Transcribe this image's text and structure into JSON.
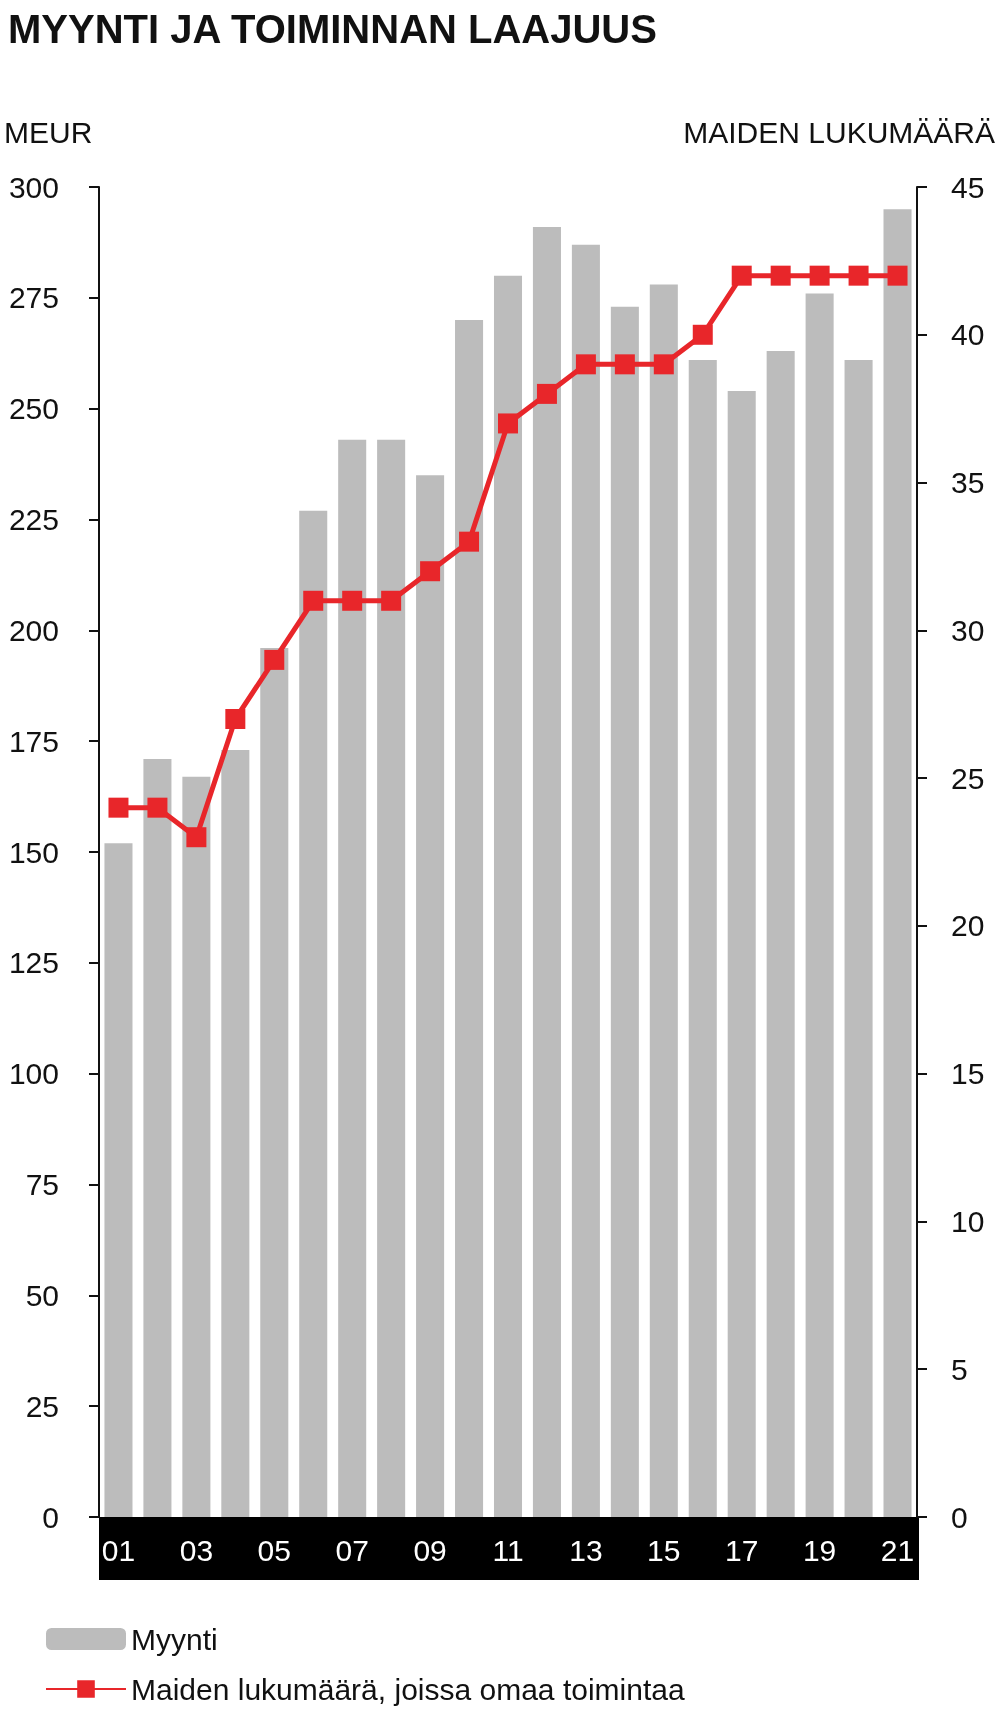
{
  "chart_data": {
    "type": "bar",
    "title": "MYYNTI JA TOIMINNAN LAAJUUS",
    "ylabel": "MEUR",
    "y2label": "MAIDEN LUKUMÄÄRÄ",
    "categories": [
      "01",
      null,
      "03",
      null,
      "05",
      null,
      "07",
      null,
      "09",
      null,
      "11",
      null,
      "13",
      null,
      "15",
      null,
      "17",
      null,
      "19",
      null,
      "21"
    ],
    "series": [
      {
        "name": "Myynti",
        "color": "#bcbcbc",
        "values": [
          152,
          171,
          167,
          173,
          196,
          227,
          243,
          243,
          235,
          270,
          280,
          291,
          287,
          273,
          278,
          261,
          254,
          263,
          276,
          261,
          295
        ]
      },
      {
        "name": "Maiden lukumäärä, joissa omaa toimintaa",
        "type": "line",
        "axis": "y2",
        "color": "#e8262a",
        "marker": "square",
        "values": [
          24,
          24,
          23,
          27,
          29,
          31,
          31,
          31,
          32,
          33,
          37,
          38,
          39,
          39,
          39,
          40,
          42,
          42,
          42,
          42,
          42
        ]
      }
    ],
    "ylim": [
      0,
      300
    ],
    "yticks": [
      0,
      25,
      50,
      75,
      100,
      125,
      150,
      175,
      200,
      225,
      250,
      275,
      300
    ],
    "y2lim": [
      0,
      45
    ],
    "y2ticks": [
      0,
      5,
      10,
      15,
      20,
      25,
      30,
      35,
      40,
      45
    ],
    "grid": false,
    "legend": "bottom left"
  }
}
